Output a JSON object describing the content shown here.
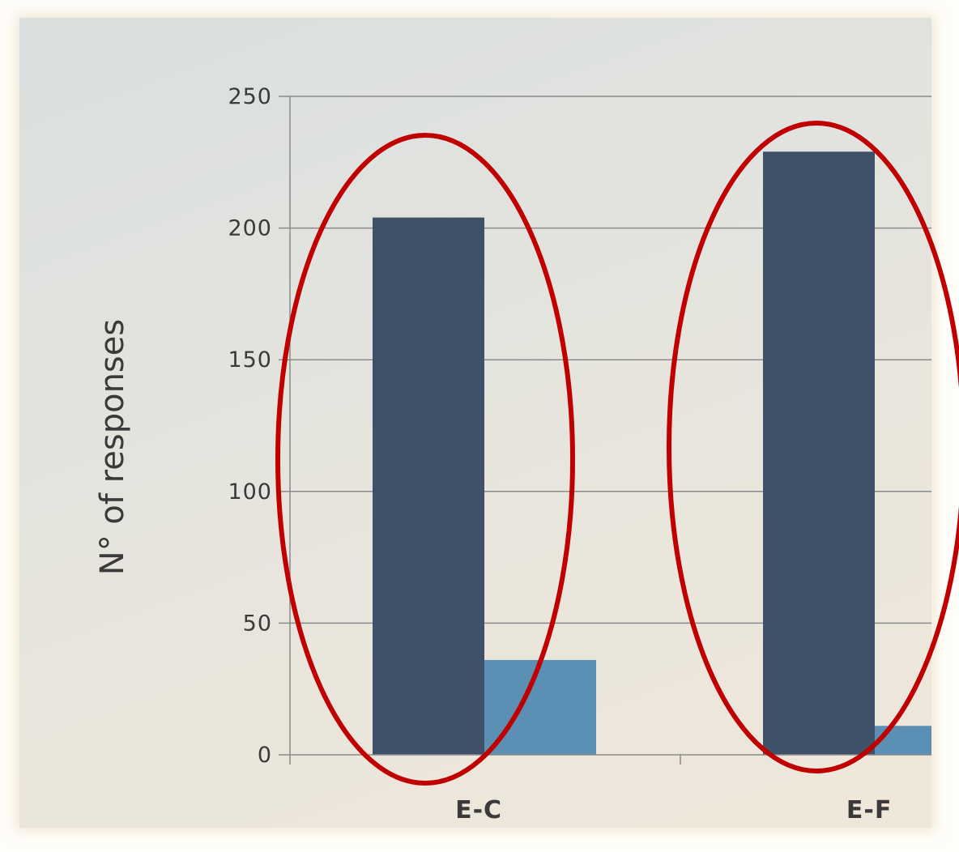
{
  "chart_data": {
    "type": "bar",
    "ylabel": "N° of responses",
    "ylim": [
      0,
      250
    ],
    "yticks": [
      "0",
      "50",
      "100",
      "150",
      "200",
      "250"
    ],
    "ytick_values": [
      0,
      50,
      100,
      150,
      200,
      250
    ],
    "categories": [
      "E-C",
      "E-F"
    ],
    "series": [
      {
        "values": [
          204,
          229
        ]
      },
      {
        "values": [
          36,
          11
        ]
      }
    ],
    "grid": true,
    "colors": {
      "series_1": "#3f5069",
      "series_2": "#5b8fb3",
      "highlight_ellipse": "#c00000",
      "gridline": "#8a8a8a"
    },
    "annotations": [
      {
        "type": "ellipse",
        "category": "E-C"
      },
      {
        "type": "ellipse",
        "category": "E-F"
      }
    ]
  }
}
